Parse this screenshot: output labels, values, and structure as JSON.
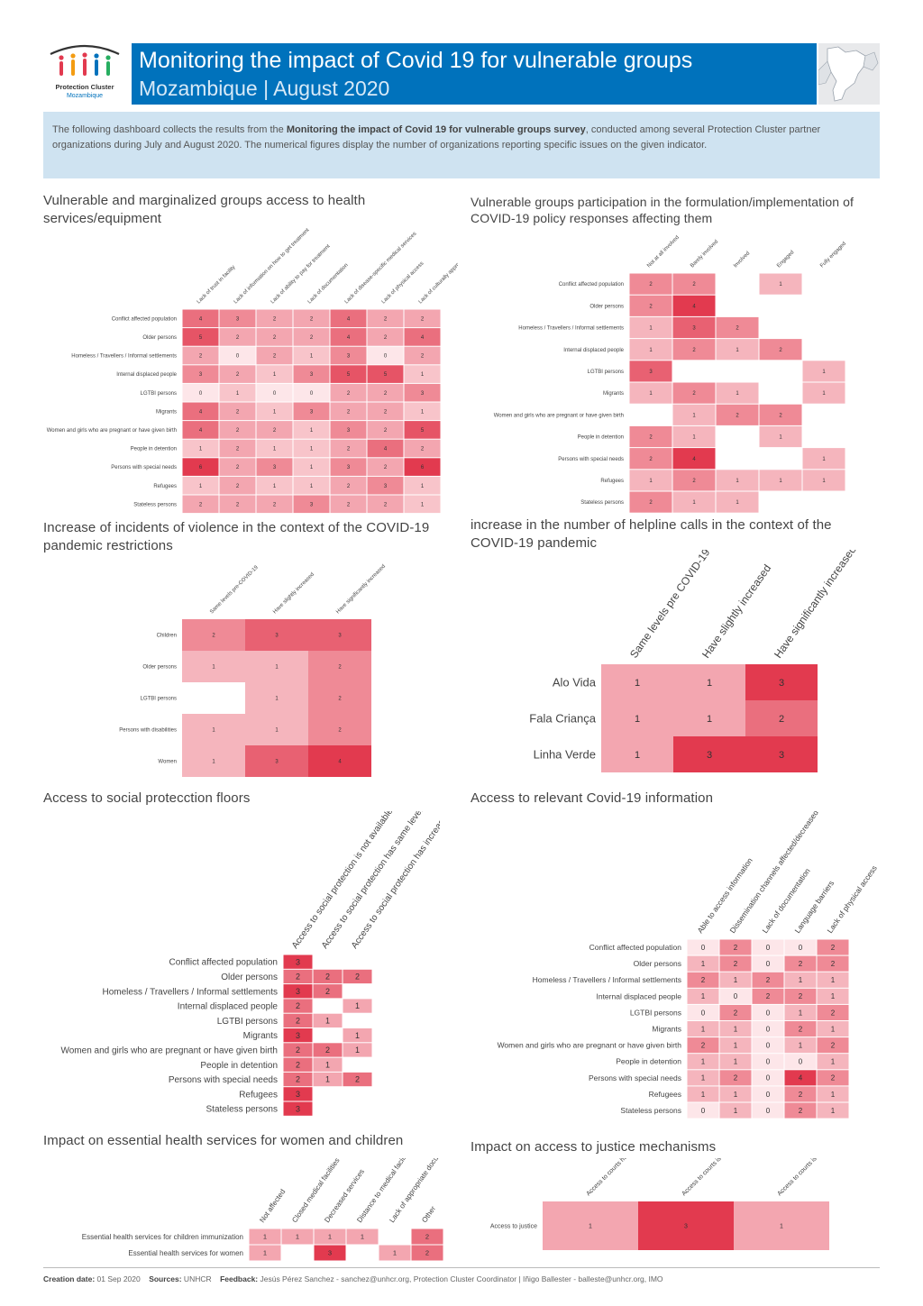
{
  "header": {
    "logo_line1": "Protection Cluster",
    "logo_line2": "Mozambique",
    "title": "Monitoring the impact of Covid 19 for vulnerable groups",
    "subtitle": "Mozambique | August 2020"
  },
  "intro": {
    "part1": "The following dashboard collects the results from the ",
    "bold": "Monitoring the impact of Covid 19 for vulnerable groups survey",
    "part2": ", conducted among several Protection Cluster partner organizations during July and August 2020. The numerical figures display the number of organizations reporting specific issues on the given indicator."
  },
  "colors": {
    "brand_blue": "#0072bc",
    "intro_bg": "#cfe3f1",
    "heat_low": "#fde6e9",
    "heat_high": "#e23a4f"
  },
  "chart_data": [
    {
      "type": "heatmap",
      "title": "Vulnerable and marginalized groups access to health services/equipment",
      "columns": [
        "Lack of trust in facility",
        "Lack of information on how to get treatment",
        "Lack of ability to pay for treatment",
        "Lack of documentation",
        "Lack of disease-specific medical services",
        "Lack of physical access",
        "Lack of culturally appropriate services"
      ],
      "rows": [
        "Conflict affected population",
        "Older persons",
        "Homeless / Travellers / Informal settlements",
        "Internal displaced people",
        "LGTBI persons",
        "Migrants",
        "Women and girls who are pregnant or have given birth",
        "People in detention",
        "Persons with special needs",
        "Refugees",
        "Stateless persons"
      ],
      "values": [
        [
          4,
          3,
          2,
          2,
          4,
          2,
          2
        ],
        [
          5,
          2,
          2,
          2,
          4,
          2,
          4
        ],
        [
          2,
          0,
          2,
          1,
          3,
          0,
          2
        ],
        [
          3,
          2,
          1,
          3,
          5,
          5,
          1
        ],
        [
          0,
          1,
          0,
          0,
          2,
          2,
          3
        ],
        [
          4,
          2,
          1,
          3,
          2,
          2,
          1
        ],
        [
          4,
          2,
          2,
          1,
          3,
          2,
          5
        ],
        [
          1,
          2,
          1,
          1,
          2,
          4,
          2
        ],
        [
          6,
          2,
          3,
          1,
          3,
          2,
          6
        ],
        [
          1,
          2,
          1,
          1,
          2,
          3,
          1
        ],
        [
          2,
          2,
          2,
          3,
          2,
          2,
          1
        ]
      ]
    },
    {
      "type": "heatmap",
      "title": "Vulnerable groups participation in the formulation/implementation of COVID-19 policy responses affecting them",
      "columns": [
        "Not at all involved",
        "Barely involved",
        "Involved",
        "Engaged",
        "Fully engaged"
      ],
      "rows": [
        "Conflict affected population",
        "Older persons",
        "Homeless / Travellers / Informal settlements",
        "Internal displaced people",
        "LGTBI persons",
        "Migrants",
        "Women and girls who are pregnant or have given birth",
        "People in detention",
        "Persons with special needs",
        "Refugees",
        "Stateless persons"
      ],
      "values": [
        [
          2,
          2,
          null,
          1,
          null
        ],
        [
          2,
          4,
          null,
          null,
          null
        ],
        [
          1,
          3,
          2,
          null,
          null
        ],
        [
          1,
          2,
          1,
          2,
          null
        ],
        [
          3,
          null,
          null,
          null,
          1
        ],
        [
          1,
          2,
          1,
          null,
          1
        ],
        [
          null,
          1,
          2,
          2,
          null
        ],
        [
          2,
          1,
          null,
          1,
          null
        ],
        [
          2,
          4,
          null,
          null,
          1
        ],
        [
          1,
          2,
          1,
          1,
          1
        ],
        [
          2,
          1,
          1,
          null,
          null
        ]
      ]
    },
    {
      "type": "heatmap",
      "title": "Increase of incidents of violence in the context of the COVID-19 pandemic restrictions",
      "columns": [
        "Same levels pre-COVID-19",
        "Have slightly increased",
        "Have significantly increased"
      ],
      "rows": [
        "Children",
        "Older persons",
        "LGTBI persons",
        "Persons with disabilities",
        "Women"
      ],
      "values": [
        [
          2,
          3,
          3
        ],
        [
          1,
          1,
          2
        ],
        [
          null,
          1,
          2
        ],
        [
          1,
          1,
          2
        ],
        [
          1,
          3,
          4
        ]
      ]
    },
    {
      "type": "heatmap",
      "title": "increase in the number of helpline calls in the context of the COVID-19 pandemic",
      "columns": [
        "Same levels pre COVID-19",
        "Have slightly increased",
        "Have significantly increased"
      ],
      "rows": [
        "Alo Vida",
        "Fala Criança",
        "Linha Verde"
      ],
      "values": [
        [
          1,
          1,
          3
        ],
        [
          1,
          1,
          2
        ],
        [
          1,
          3,
          3
        ]
      ]
    },
    {
      "type": "heatmap",
      "title": "Access to social protecction floors",
      "columns": [
        "Access to social protection is not available",
        "Access to social protection has same levels pre COVID-19",
        "Access to social protection has increased"
      ],
      "rows": [
        "Conflict affected population",
        "Older persons",
        "Homeless / Travellers / Informal settlements",
        "Internal displaced people",
        "LGTBI persons",
        "Migrants",
        "Women and girls who are pregnant or have given birth",
        "People in detention",
        "Persons with special needs",
        "Refugees",
        "Stateless persons"
      ],
      "values": [
        [
          3,
          null,
          null
        ],
        [
          2,
          2,
          2
        ],
        [
          3,
          2,
          null
        ],
        [
          2,
          null,
          1
        ],
        [
          2,
          1,
          null
        ],
        [
          3,
          null,
          1
        ],
        [
          2,
          2,
          1
        ],
        [
          2,
          1,
          null
        ],
        [
          2,
          1,
          2
        ],
        [
          3,
          null,
          null
        ],
        [
          3,
          null,
          null
        ]
      ]
    },
    {
      "type": "heatmap",
      "title": "Access to relevant Covid-19 information",
      "columns": [
        "Able to access information",
        "Dissemination channels affected/decreased",
        "Lack of documentation",
        "Language barriers",
        "Lack of physical access"
      ],
      "rows": [
        "Conflict affected population",
        "Older persons",
        "Homeless / Travellers / Informal settlements",
        "Internal displaced people",
        "LGTBI persons",
        "Migrants",
        "Women and girls who are pregnant or have given birth",
        "People in detention",
        "Persons with special needs",
        "Refugees",
        "Stateless persons"
      ],
      "values": [
        [
          0,
          2,
          0,
          0,
          2
        ],
        [
          1,
          2,
          0,
          2,
          2
        ],
        [
          2,
          1,
          2,
          1,
          1
        ],
        [
          1,
          0,
          2,
          2,
          1
        ],
        [
          0,
          2,
          0,
          1,
          2
        ],
        [
          1,
          1,
          0,
          2,
          1
        ],
        [
          2,
          1,
          0,
          1,
          2
        ],
        [
          1,
          1,
          0,
          0,
          1
        ],
        [
          1,
          2,
          0,
          4,
          2
        ],
        [
          1,
          1,
          0,
          2,
          1
        ],
        [
          0,
          1,
          0,
          2,
          1
        ]
      ]
    },
    {
      "type": "heatmap",
      "title": "Impact on essential health services for women and children",
      "columns": [
        "Not affected",
        "Closed medical facilities",
        "Decreased services",
        "Distance to medical facilities",
        "Lack of appropriate documentation",
        "Other"
      ],
      "rows": [
        "Essential health services for children immunization",
        "Essential health services for women"
      ],
      "values": [
        [
          1,
          1,
          1,
          1,
          null,
          2
        ],
        [
          1,
          null,
          3,
          null,
          1,
          2
        ]
      ]
    },
    {
      "type": "heatmap",
      "title": "Impact on access to justice mechanisms",
      "columns": [
        "Access to courts have been reduced",
        "Access to courts is unlimited",
        "Access to courts is not available"
      ],
      "rows": [
        "Access to justice"
      ],
      "values": [
        [
          1,
          3,
          1
        ]
      ]
    }
  ],
  "footer": {
    "creation_label": "Creation date:",
    "creation_value": " 01 Sep 2020",
    "sources_label": "Sources:",
    "sources_value": " UNHCR",
    "feedback_label": "Feedback:",
    "feedback_value": " Jesús Pérez Sanchez - sanchez@unhcr.org, Protection Cluster Coordinator | Iñigo Ballester - balleste@unhcr.org, IMO"
  }
}
